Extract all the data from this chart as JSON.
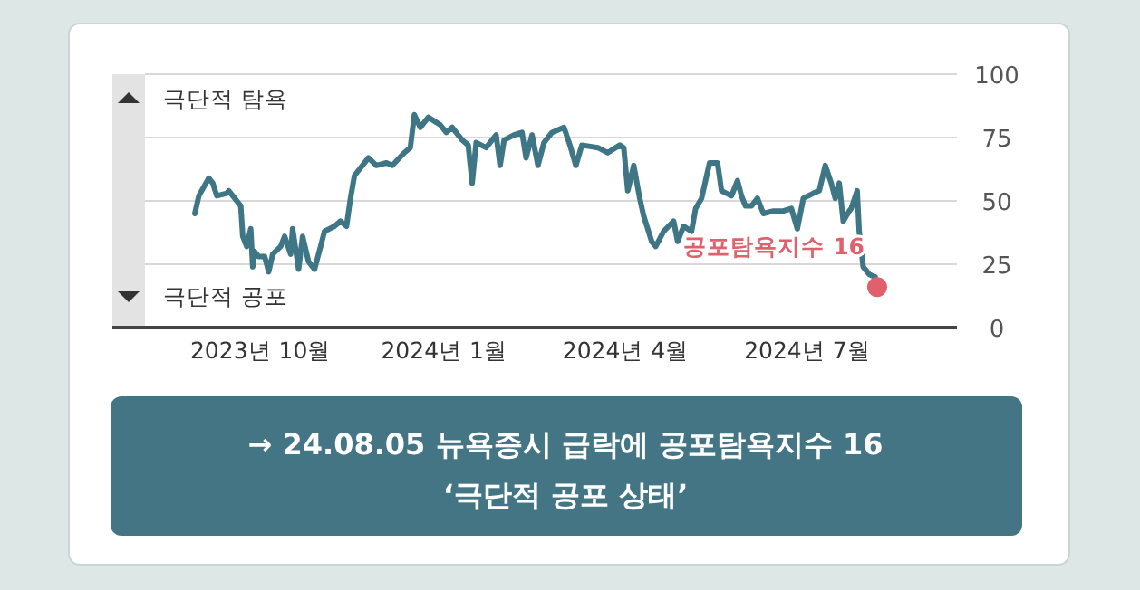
{
  "chart_data": {
    "type": "line",
    "xlim": [
      "2023-08-04",
      "2024-09-14"
    ],
    "xticks": [
      {
        "value": "2023-10-01",
        "label": "2023년 10월"
      },
      {
        "value": "2024-01-01",
        "label": "2024년 1월"
      },
      {
        "value": "2024-04-01",
        "label": "2024년 4월"
      },
      {
        "value": "2024-07-01",
        "label": "2024년 7월"
      }
    ],
    "ylim": [
      0,
      100
    ],
    "yticks": [
      0,
      25,
      50,
      75,
      100
    ],
    "grid": "y",
    "series": [
      {
        "color": "#3e7686",
        "x": [
          "2023-08-29",
          "2023-08-31",
          "2023-09-05",
          "2023-09-07",
          "2023-09-09",
          "2023-09-14",
          "2023-09-15",
          "2023-09-18",
          "2023-09-21",
          "2023-09-22",
          "2023-09-24",
          "2023-09-26",
          "2023-09-27",
          "2023-09-28",
          "2023-09-30",
          "2023-10-03",
          "2023-10-05",
          "2023-10-07",
          "2023-10-11",
          "2023-10-13",
          "2023-10-16",
          "2023-10-17",
          "2023-10-20",
          "2023-10-22",
          "2023-10-25",
          "2023-10-28",
          "2023-10-31",
          "2023-11-02",
          "2023-11-07",
          "2023-11-10",
          "2023-11-13",
          "2023-11-15",
          "2023-11-17",
          "2023-11-21",
          "2023-11-24",
          "2023-11-28",
          "2023-12-03",
          "2023-12-06",
          "2023-12-12",
          "2023-12-15",
          "2023-12-17",
          "2023-12-20",
          "2023-12-24",
          "2023-12-30",
          "2024-01-02",
          "2024-01-05",
          "2024-01-10",
          "2024-01-13",
          "2024-01-15",
          "2024-01-17",
          "2024-01-22",
          "2024-01-27",
          "2024-01-29",
          "2024-01-31",
          "2024-02-05",
          "2024-02-09",
          "2024-02-11",
          "2024-02-14",
          "2024-02-17",
          "2024-02-20",
          "2024-02-24",
          "2024-03-01",
          "2024-03-04",
          "2024-03-07",
          "2024-03-10",
          "2024-03-18",
          "2024-03-23",
          "2024-03-29",
          "2024-03-31",
          "2024-04-02",
          "2024-04-05",
          "2024-04-08",
          "2024-04-10",
          "2024-04-14",
          "2024-04-16",
          "2024-04-20",
          "2024-04-25",
          "2024-04-27",
          "2024-04-30",
          "2024-05-04",
          "2024-05-06",
          "2024-05-09",
          "2024-05-13",
          "2024-05-17",
          "2024-05-19",
          "2024-05-24",
          "2024-05-27",
          "2024-05-29",
          "2024-05-31",
          "2024-06-03",
          "2024-06-06",
          "2024-06-09",
          "2024-06-14",
          "2024-06-19",
          "2024-06-23",
          "2024-06-26",
          "2024-06-29",
          "2024-07-04",
          "2024-07-07",
          "2024-07-10",
          "2024-07-13",
          "2024-07-15",
          "2024-07-17",
          "2024-07-19",
          "2024-07-22",
          "2024-07-23",
          "2024-07-26",
          "2024-07-27",
          "2024-07-29",
          "2024-08-01",
          "2024-08-04"
        ],
        "values": [
          45,
          52,
          59,
          57,
          52,
          53,
          54,
          51,
          48,
          36,
          32,
          39,
          24,
          30,
          28,
          28,
          22,
          29,
          32,
          36,
          29,
          39,
          23,
          36,
          26,
          23,
          32,
          38,
          40,
          42,
          40,
          51,
          60,
          64,
          67,
          64,
          65,
          64,
          69,
          71,
          84,
          79,
          83,
          80,
          77,
          79,
          74,
          72,
          57,
          73,
          71,
          76,
          64,
          74,
          76,
          77,
          67,
          76,
          64,
          73,
          77,
          79,
          72,
          64,
          72,
          71,
          69,
          72,
          71,
          54,
          64,
          51,
          44,
          34,
          32,
          38,
          42,
          34,
          40,
          38,
          47,
          51,
          65,
          65,
          54,
          52,
          58,
          52,
          48,
          48,
          51,
          45,
          46,
          46,
          47,
          39,
          51,
          53,
          54,
          64,
          57,
          51,
          57,
          42,
          46,
          47,
          54,
          38,
          24,
          21,
          20
        ]
      },
      {
        "type": "scatter",
        "color": "#e0606c",
        "marker": "circle",
        "x": [
          "2024-08-05"
        ],
        "values": [
          16
        ]
      }
    ],
    "annotations": [
      "극단적 탐욕",
      "극단적 공포",
      {
        "text": "공포탐욕지수 16",
        "x": "2024-08-05",
        "y": 16
      },
      "→ 24.08.05 뉴욕증시 급락에 공포탐욕지수 16",
      "‘극단적 공포 상태’"
    ]
  }
}
